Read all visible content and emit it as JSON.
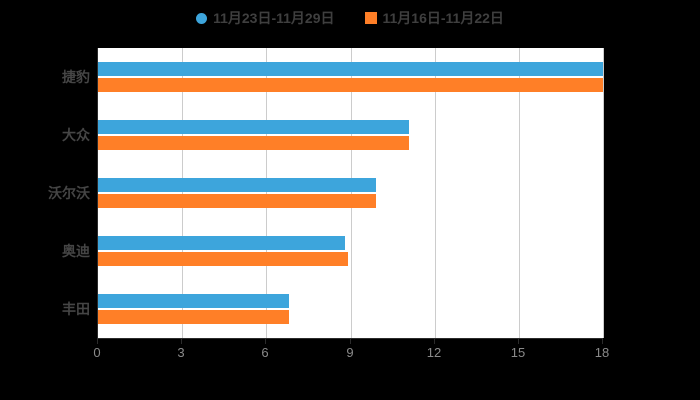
{
  "page": {
    "background": "#000000",
    "plot_background": "#ffffff"
  },
  "legend": {
    "items": [
      {
        "label": "11月23日-11月29日",
        "color": "#3da5dc",
        "marker": "circle"
      },
      {
        "label": "11月16日-11月22日",
        "color": "#ff7f27",
        "marker": "square"
      }
    ]
  },
  "chart_data": {
    "type": "bar",
    "orientation": "horizontal",
    "title": "",
    "xlabel": "",
    "ylabel": "",
    "categories": [
      "捷豹",
      "大众",
      "沃尔沃",
      "奥迪",
      "丰田"
    ],
    "series": [
      {
        "name": "11月23日-11月29日",
        "color": "#3da5dc",
        "values": [
          18,
          11.1,
          9.9,
          8.8,
          6.8
        ]
      },
      {
        "name": "11月16日-11月22日",
        "color": "#ff7f27",
        "values": [
          18,
          11.1,
          9.9,
          8.9,
          6.8
        ]
      }
    ],
    "xlim": [
      0,
      18
    ],
    "xticks": [
      0,
      3,
      6,
      9,
      12,
      15,
      18
    ],
    "grid": true,
    "legend_position": "top"
  }
}
